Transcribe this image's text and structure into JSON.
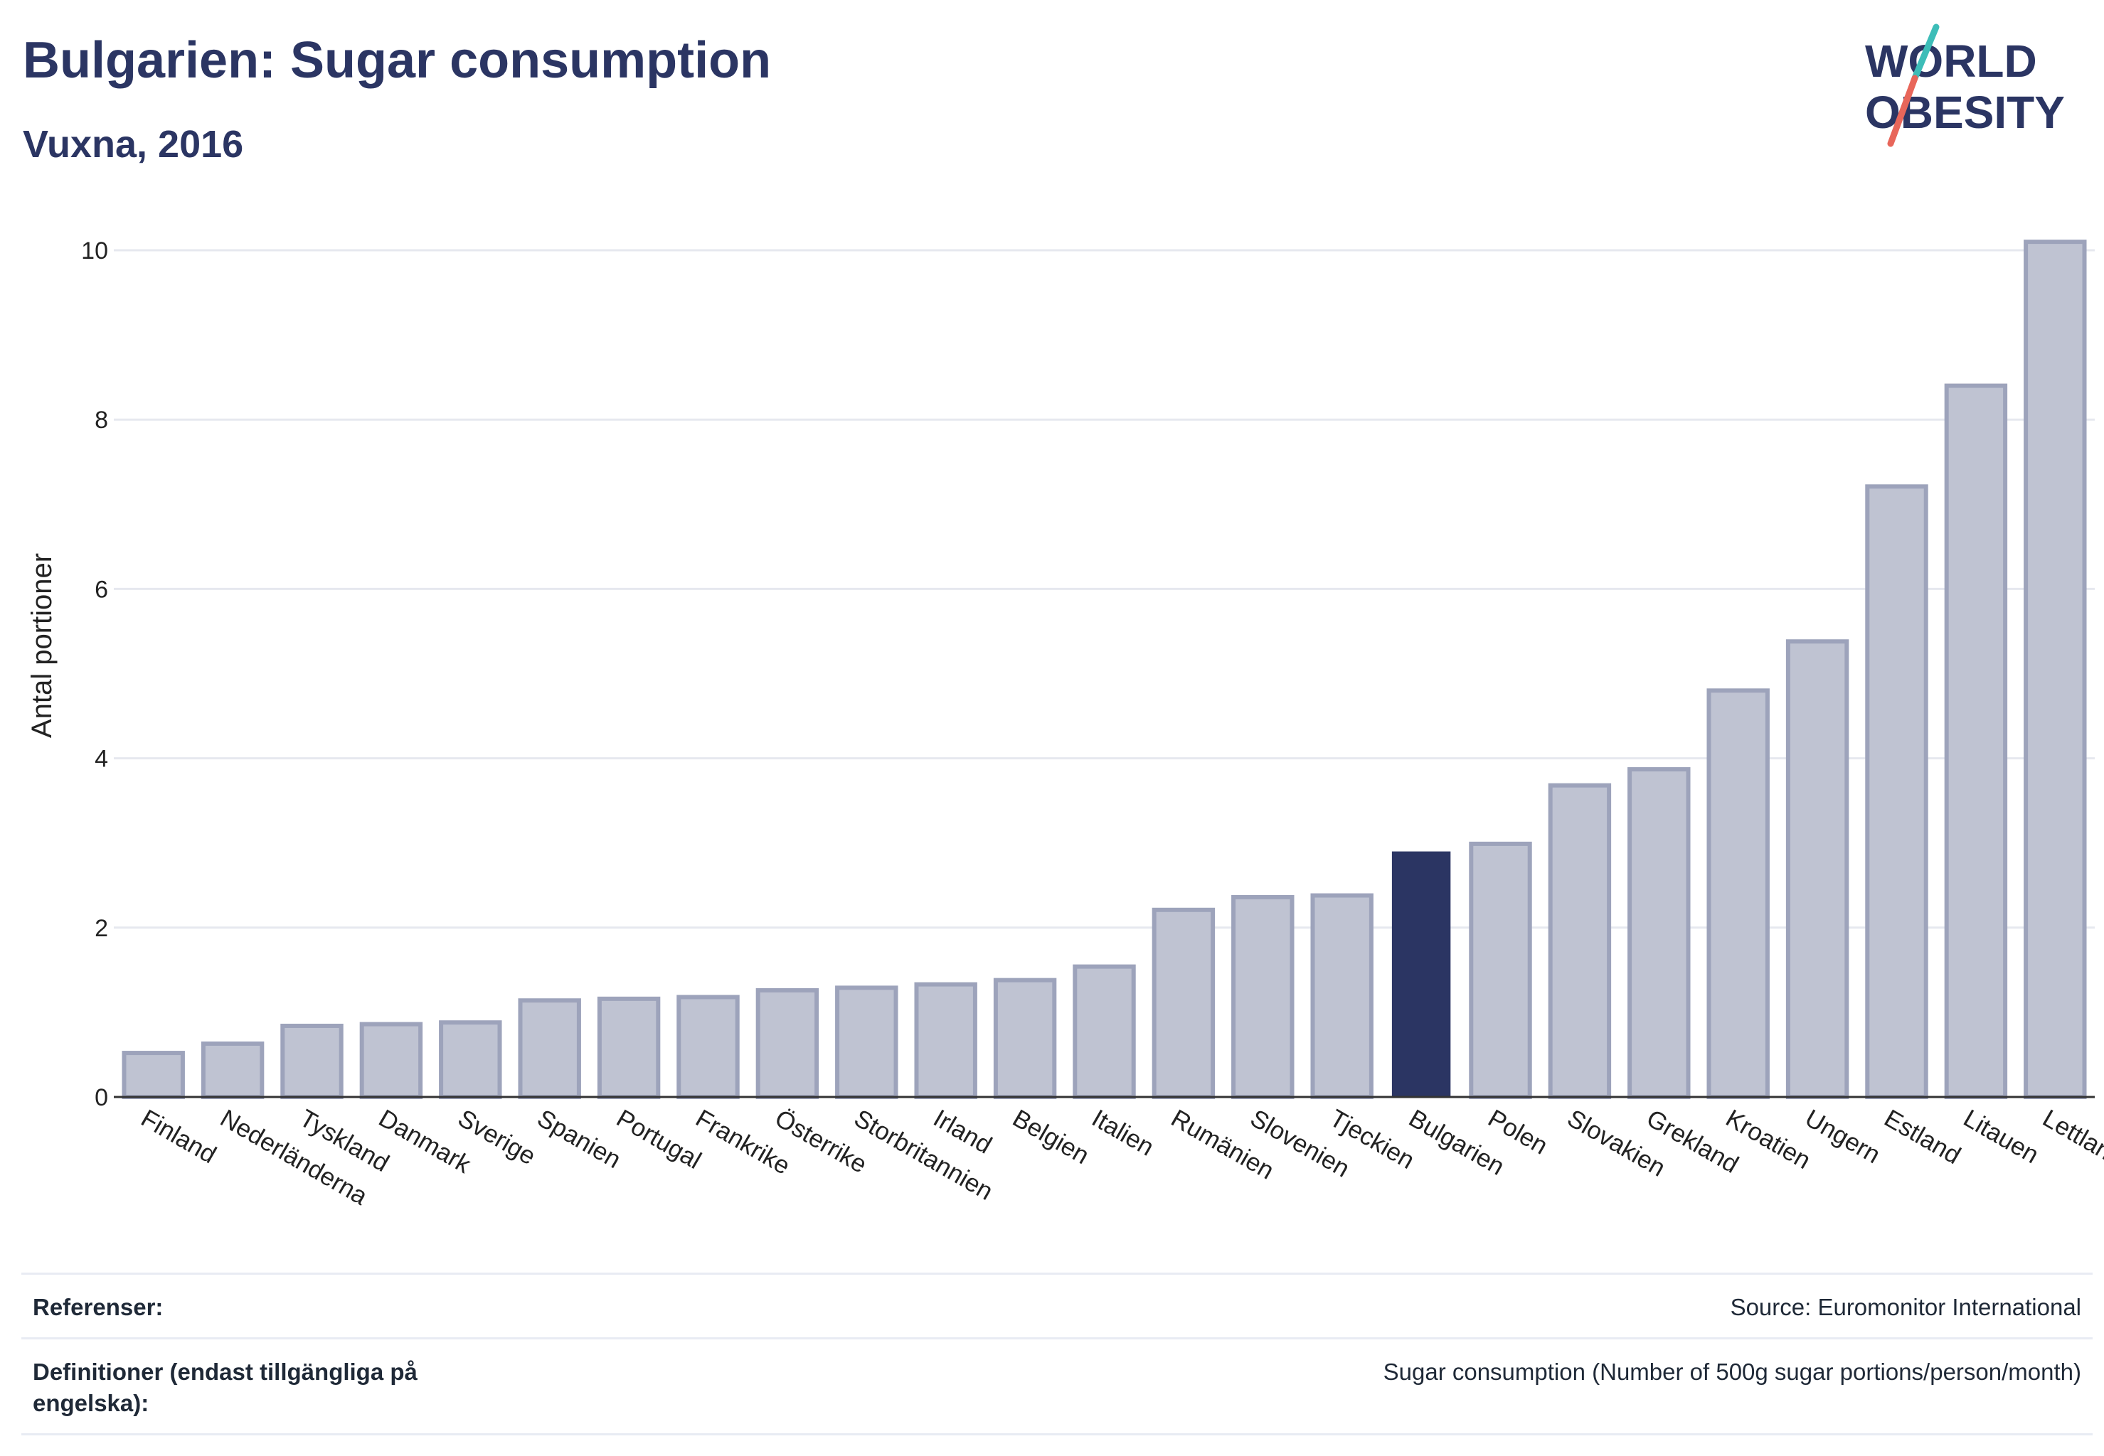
{
  "header": {
    "title": "Bulgarien: Sugar consumption",
    "subtitle": "Vuxna, 2016"
  },
  "logo": {
    "line1": "WORLD",
    "line2": "OBESITY",
    "colors": {
      "text": "#2b3563",
      "slash_top": "#3dbdb8",
      "slash_bottom": "#e8665a"
    }
  },
  "colors": {
    "bar": "#bfc3d2",
    "bar_stroke": "#9da3bb",
    "highlight": "#2b3563",
    "grid": "#e6e8ef",
    "axis": "#333333"
  },
  "chart_data": {
    "type": "bar",
    "title": "Bulgarien: Sugar consumption",
    "subtitle": "Vuxna, 2016",
    "xlabel": "",
    "ylabel": "Antal portioner",
    "ylim": [
      0,
      10.5
    ],
    "yticks": [
      0,
      2,
      4,
      6,
      8,
      10
    ],
    "grid": true,
    "highlight": "Bulgarien",
    "categories": [
      "Finland",
      "Nederländerna",
      "Tyskland",
      "Danmark",
      "Sverige",
      "Spanien",
      "Portugal",
      "Frankrike",
      "Österrike",
      "Storbritannien",
      "Irland",
      "Belgien",
      "Italien",
      "Rumänien",
      "Slovenien",
      "Tjeckien",
      "Bulgarien",
      "Polen",
      "Slovakien",
      "Grekland",
      "Kroatien",
      "Ungern",
      "Estland",
      "Litauen",
      "Lettland"
    ],
    "values": [
      0.52,
      0.63,
      0.84,
      0.86,
      0.88,
      1.14,
      1.16,
      1.18,
      1.26,
      1.29,
      1.33,
      1.38,
      1.54,
      2.21,
      2.36,
      2.38,
      2.9,
      2.99,
      3.68,
      3.87,
      4.8,
      5.38,
      7.21,
      8.4,
      10.1
    ]
  },
  "references": {
    "ref_label": "Referenser:",
    "ref_value": "Source: Euromonitor International",
    "def_label": "Definitioner (endast tillgängliga på engelska):",
    "def_value": "Sugar consumption (Number of 500g sugar portions/person/month)"
  }
}
